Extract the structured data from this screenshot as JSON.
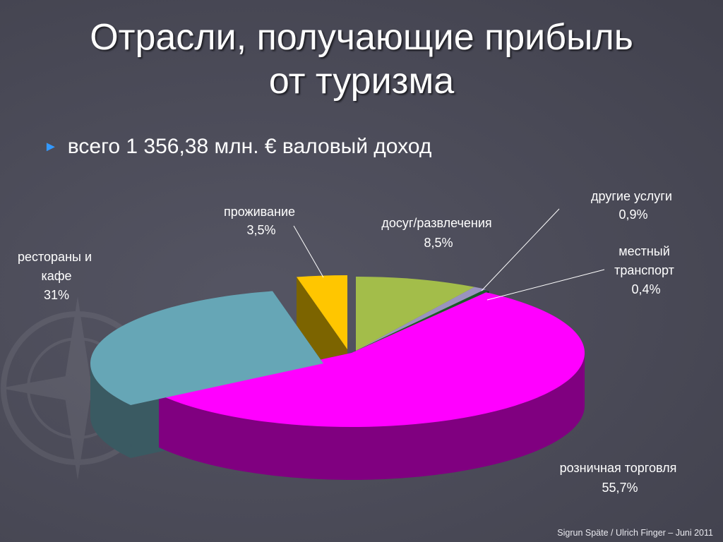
{
  "slide": {
    "title_line1": "Отрасли, получающие прибыль",
    "title_line2": "от туризма",
    "bullet": "всего 1 356,38 млн. € валовый доход",
    "footer": "Sigrun Späte / Ulrich Finger – Juni 2011"
  },
  "chart_data": {
    "type": "pie",
    "style": "3d",
    "total_label": "всего 1 356,38 млн. € валовый доход",
    "slices": [
      {
        "label": "досуг/развлечения",
        "value": 8.5,
        "value_label": "8,5%",
        "color": "#a3bd4a",
        "side": "#6f8030"
      },
      {
        "label": "другие услуги",
        "value": 0.9,
        "value_label": "0,9%",
        "color": "#9a93bf",
        "side": "#625c82"
      },
      {
        "label": "местный транспорт",
        "value": 0.4,
        "value_label": "0,4%",
        "color": "#1c5a2b",
        "side": "#103a1b"
      },
      {
        "label": "розничная торговля",
        "value": 55.7,
        "value_label": "55,7%",
        "color": "#ff00ff",
        "side": "#800080"
      },
      {
        "label": "рестораны и кафе",
        "value": 31,
        "value_label": "31%",
        "color": "#66a6b6",
        "side": "#3a5a62"
      },
      {
        "label": "проживание",
        "value": 3.5,
        "value_label": "3,5%",
        "color": "#ffc600",
        "side": "#7c6400"
      }
    ]
  }
}
